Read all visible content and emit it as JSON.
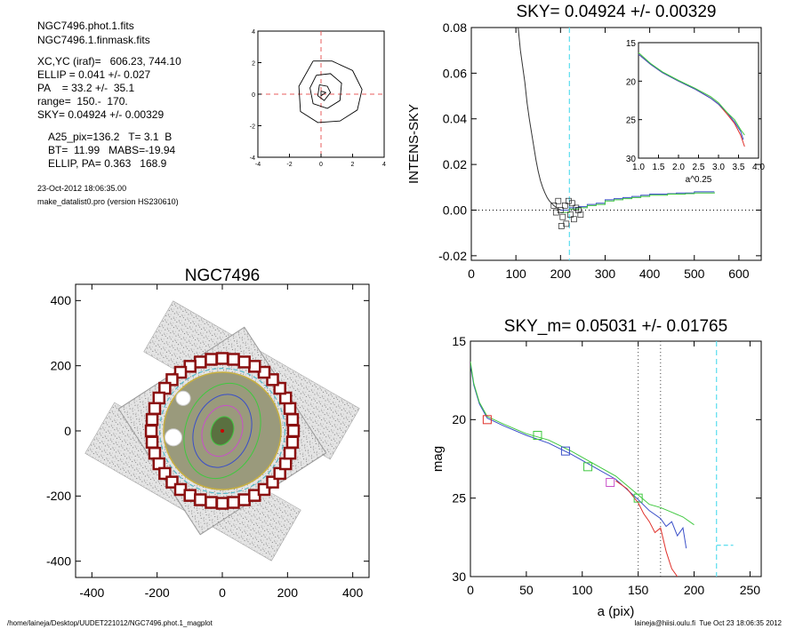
{
  "info": {
    "line1": "NGC7496.phot.1.fits",
    "line2": "NGC7496.1.finmask.fits",
    "xcyc": "XC,YC (iraf)=   606.23, 744.10",
    "ellip": "ELLIP = 0.041 +/- 0.027",
    "pa": "PA    = 33.2 +/-  35.1",
    "range": "range=  150.-  170.",
    "sky": "SKY= 0.04924 +/- 0.00329",
    "a25": "A25_pix=136.2   T= 3.1  B",
    "bt": "BT=  11.99   MABS=-19.94",
    "ellip_pa": "ELLIP, PA= 0.363   168.9",
    "date": "23-Oct-2012 18:06:35.00",
    "version": "make_datalist0.pro (version HS230610)"
  },
  "footer": {
    "left": "/home/laineja/Desktop/UUDET221012/NGC7496.phot.1_magplot",
    "right": "laineja@hiisi.oulu.fi  Tue Oct 23 18:06:35 2012"
  },
  "colors": {
    "axis": "#000000",
    "cyan_dashed": "#66e0f0",
    "red_dashed": "#e85c5c",
    "red": "#e0302a",
    "green": "#40c840",
    "blue": "#3a4fc8",
    "magenta": "#c850c8",
    "box_red": "#8b1010"
  },
  "chart_data": [
    {
      "id": "centroid",
      "type": "line",
      "xlim": [
        -4,
        4
      ],
      "ylim": [
        -4,
        4
      ],
      "xticks": [
        "-4",
        "-2",
        "0",
        "2",
        "4"
      ],
      "yticks": [
        "-4",
        "-2",
        "0",
        "2",
        "4"
      ],
      "series": [
        {
          "points": [
            [
              -0.5,
              2.1
            ],
            [
              0.7,
              2.1
            ],
            [
              2.0,
              1.5
            ],
            [
              2.6,
              0.3
            ],
            [
              2.3,
              -1.0
            ],
            [
              1.2,
              -1.7
            ],
            [
              -0.2,
              -1.8
            ],
            [
              -1.3,
              -1.1
            ],
            [
              -1.4,
              0.5
            ],
            [
              -0.5,
              2.1
            ]
          ]
        },
        {
          "points": [
            [
              -0.3,
              1.2
            ],
            [
              0.6,
              1.3
            ],
            [
              1.3,
              0.7
            ],
            [
              1.2,
              -0.4
            ],
            [
              0.4,
              -0.9
            ],
            [
              -0.5,
              -0.6
            ],
            [
              -0.7,
              0.4
            ],
            [
              -0.3,
              1.2
            ]
          ]
        },
        {
          "points": [
            [
              -0.1,
              0.6
            ],
            [
              0.4,
              0.5
            ],
            [
              0.6,
              0.1
            ],
            [
              0.2,
              -0.4
            ],
            [
              -0.2,
              -0.1
            ],
            [
              -0.1,
              0.6
            ]
          ]
        },
        {
          "points": [
            [
              0.0,
              0.2
            ],
            [
              0.3,
              0.1
            ],
            [
              0.0,
              -0.1
            ],
            [
              0.0,
              0.2
            ]
          ]
        }
      ]
    },
    {
      "id": "sky",
      "type": "line",
      "title": "SKY= 0.04924 +/- 0.00329",
      "ylabel": "INTENS-SKY",
      "xlim": [
        0,
        650
      ],
      "ylim": [
        -0.022,
        0.08
      ],
      "xticks": [
        "0",
        "100",
        "200",
        "300",
        "400",
        "500",
        "600"
      ],
      "yticks": [
        "-0.02",
        "0.00",
        "0.02",
        "0.04",
        "0.06",
        "0.08"
      ],
      "sky_line_x": 220,
      "series": [
        {
          "name": "",
          "color": "#333333",
          "x": [
            105,
            110,
            120,
            125,
            130,
            135,
            140,
            145,
            150,
            155,
            160,
            165,
            170,
            175,
            180,
            185,
            190,
            195,
            200
          ],
          "y": [
            0.08,
            0.07,
            0.056,
            0.047,
            0.04,
            0.034,
            0.028,
            0.022,
            0.017,
            0.013,
            0.01,
            0.0075,
            0.0055,
            0.004,
            0.003,
            0.002,
            0.0012,
            0.0006,
            0.0002
          ]
        },
        {
          "name": "",
          "color": "#3a4fc8",
          "x": [
            200,
            220,
            240,
            260,
            280,
            300,
            320,
            340,
            360,
            380,
            400,
            420,
            440,
            460,
            480,
            500,
            520,
            545
          ],
          "y": [
            0.0,
            0.001,
            0.0015,
            0.0025,
            0.003,
            0.0045,
            0.005,
            0.0055,
            0.006,
            0.0065,
            0.007,
            0.007,
            0.0072,
            0.0075,
            0.0075,
            0.008,
            0.008,
            0.008
          ]
        },
        {
          "name": "",
          "color": "#40c840",
          "x": [
            200,
            220,
            240,
            260,
            280,
            300,
            320,
            340,
            360,
            380,
            400,
            420,
            440,
            460,
            480,
            500,
            520,
            545
          ],
          "y": [
            -0.001,
            0.0005,
            0.001,
            0.002,
            0.0025,
            0.004,
            0.0045,
            0.005,
            0.0055,
            0.006,
            0.0065,
            0.0065,
            0.007,
            0.007,
            0.0072,
            0.0075,
            0.0075,
            0.0078
          ]
        }
      ],
      "box_points": [
        [
          195,
          0.004
        ],
        [
          200,
          0.0
        ],
        [
          205,
          -0.003
        ],
        [
          210,
          0.002
        ],
        [
          213,
          -0.006
        ],
        [
          218,
          0.004
        ],
        [
          222,
          -0.002
        ],
        [
          226,
          0.003
        ],
        [
          230,
          -0.004
        ],
        [
          235,
          0.001
        ],
        [
          240,
          0.0
        ],
        [
          245,
          -0.002
        ],
        [
          190,
          -0.001
        ],
        [
          185,
          0.002
        ],
        [
          202,
          -0.007
        ]
      ],
      "inset": {
        "xlabel": "a^0.25",
        "xlim": [
          1.0,
          4.0
        ],
        "ylim": [
          15,
          30
        ],
        "xticks": [
          "1.0",
          "1.5",
          "2.0",
          "2.5",
          "3.0",
          "3.5",
          "4.0"
        ],
        "yticks": [
          "15",
          "20",
          "25",
          "30"
        ],
        "series": [
          {
            "color": "#e0302a",
            "x": [
              1.0,
              1.3,
              1.6,
              2.0,
              2.4,
              2.8,
              3.0,
              3.2,
              3.4,
              3.55,
              3.65
            ],
            "y": [
              16.5,
              17.8,
              18.9,
              20.0,
              21.0,
              22.2,
              23.0,
              24.2,
              25.5,
              27.0,
              28.5
            ]
          },
          {
            "color": "#3a4fc8",
            "x": [
              1.0,
              1.3,
              1.6,
              2.0,
              2.4,
              2.8,
              3.0,
              3.2,
              3.4,
              3.55,
              3.62
            ],
            "y": [
              16.5,
              17.8,
              18.9,
              20.0,
              21.0,
              22.2,
              23.0,
              24.0,
              25.3,
              26.5,
              27.6
            ]
          },
          {
            "color": "#40c840",
            "x": [
              1.0,
              1.3,
              1.6,
              2.0,
              2.4,
              2.8,
              3.0,
              3.2,
              3.4,
              3.55,
              3.65
            ],
            "y": [
              16.3,
              17.7,
              18.8,
              19.9,
              20.9,
              22.0,
              22.8,
              24.0,
              25.0,
              26.3,
              27.0
            ]
          }
        ]
      }
    },
    {
      "id": "image",
      "type": "heatmap",
      "title": "NGC7496",
      "xlim": [
        -450,
        450
      ],
      "ylim": [
        -450,
        450
      ],
      "xticks": [
        "-400",
        "-200",
        "0",
        "200",
        "400"
      ],
      "yticks": [
        "400",
        "200",
        "0",
        "-200",
        "-400"
      ],
      "ring_radius": 180,
      "ellipse_radii": [
        45,
        80,
        115,
        150
      ]
    },
    {
      "id": "profile",
      "type": "line",
      "title": "SKY_m=  0.05031 +/- 0.01765",
      "xlabel": "a (pix)",
      "ylabel": "mag",
      "xlim": [
        0,
        260
      ],
      "ylim": [
        15,
        30
      ],
      "xticks": [
        "0",
        "50",
        "100",
        "150",
        "200",
        "250"
      ],
      "yticks": [
        "15",
        "20",
        "25",
        "30"
      ],
      "range_lines": [
        150,
        170
      ],
      "sky_line_x": 220,
      "series": [
        {
          "name": "",
          "color": "#3a4fc8",
          "x": [
            0,
            3,
            8,
            15,
            30,
            50,
            70,
            90,
            110,
            130,
            150,
            160,
            170,
            175,
            180,
            185,
            190,
            193
          ],
          "y": [
            16.5,
            17.8,
            19.0,
            19.9,
            20.4,
            21.0,
            21.5,
            22.2,
            23.0,
            23.8,
            25.1,
            25.8,
            26.3,
            26.8,
            26.5,
            27.4,
            26.9,
            28.2
          ]
        },
        {
          "name": "",
          "color": "#40c840",
          "x": [
            0,
            3,
            8,
            15,
            30,
            50,
            70,
            90,
            110,
            130,
            150,
            160,
            170,
            180,
            190,
            200
          ],
          "y": [
            16.3,
            17.7,
            18.9,
            19.8,
            20.3,
            20.9,
            21.3,
            22.0,
            22.8,
            23.6,
            24.8,
            25.4,
            25.6,
            25.9,
            26.2,
            26.7
          ]
        },
        {
          "name": "",
          "color": "#e0302a",
          "x": [
            130,
            140,
            150,
            155,
            160,
            165,
            170,
            175,
            180,
            185
          ],
          "y": [
            23.9,
            24.4,
            25.3,
            26.0,
            26.5,
            27.2,
            26.9,
            28.4,
            29.5,
            30.0
          ]
        }
      ],
      "sky_point": {
        "x": [
          220,
          235
        ],
        "y": 28.0
      },
      "boxes": [
        {
          "x": 15,
          "y": 20.0,
          "color": "#e0302a"
        },
        {
          "x": 60,
          "y": 21.0,
          "color": "#40c840"
        },
        {
          "x": 85,
          "y": 22.0,
          "color": "#3a4fc8"
        },
        {
          "x": 105,
          "y": 23.0,
          "color": "#40c840"
        },
        {
          "x": 125,
          "y": 24.0,
          "color": "#c850c8"
        },
        {
          "x": 150,
          "y": 25.0,
          "color": "#40c840"
        }
      ]
    }
  ]
}
